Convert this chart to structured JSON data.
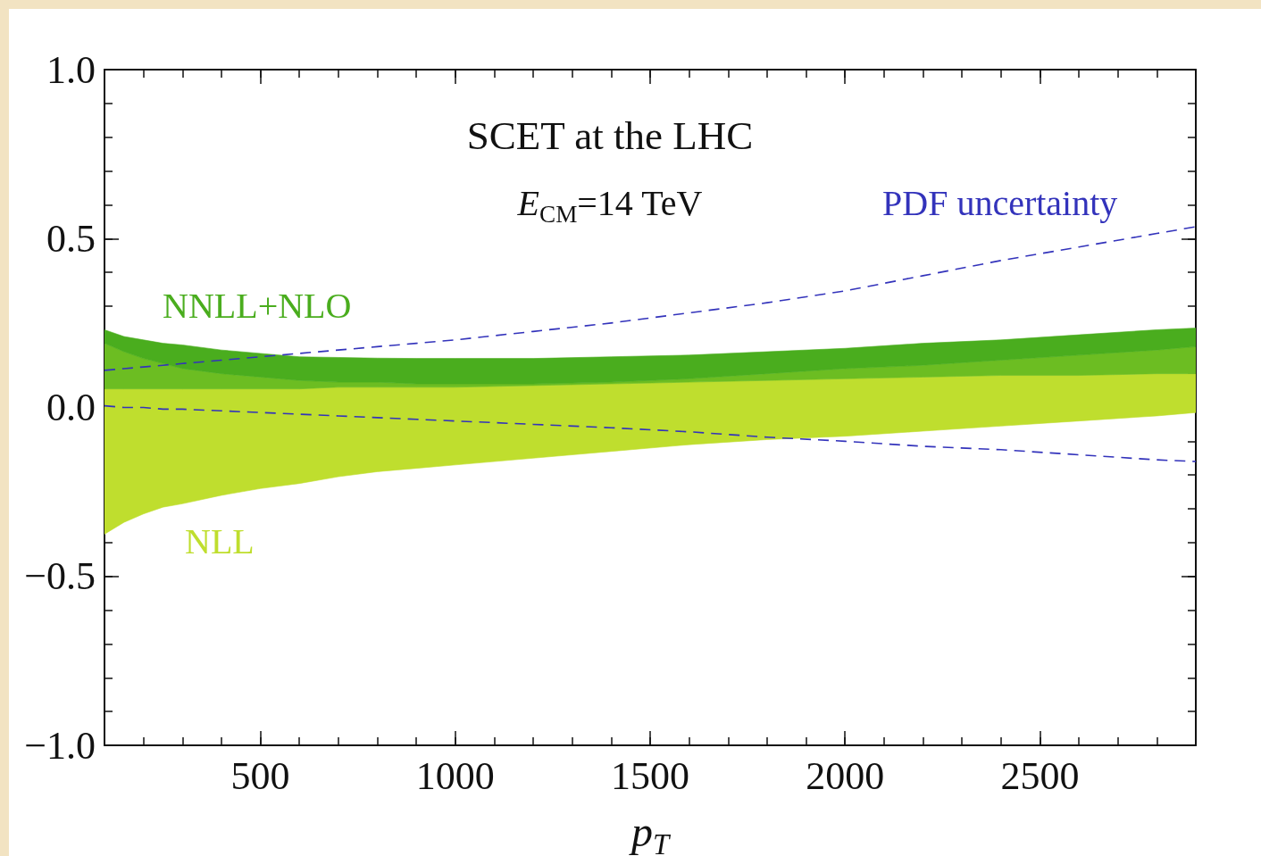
{
  "chart_data": {
    "type": "area",
    "title": "SCET at the LHC",
    "subtitle": "E$_{CM}$=14 TeV",
    "xlabel": "p$_{T}$",
    "x": [
      100,
      150,
      200,
      250,
      300,
      400,
      500,
      600,
      700,
      800,
      900,
      1000,
      1200,
      1400,
      1600,
      1800,
      2000,
      2200,
      2400,
      2600,
      2800,
      2900
    ],
    "series": [
      {
        "name": "NLL",
        "color": "#bfde2e",
        "values": [
          null,
          null,
          null,
          null,
          null,
          null,
          null,
          null,
          null,
          null,
          null,
          null,
          null,
          null,
          null,
          null,
          null,
          null,
          null,
          null,
          null,
          null
        ],
        "lower": [
          -0.375,
          -0.34,
          -0.315,
          -0.295,
          -0.285,
          -0.26,
          -0.24,
          -0.225,
          -0.205,
          -0.19,
          -0.18,
          -0.17,
          -0.15,
          -0.13,
          -0.11,
          -0.095,
          -0.085,
          -0.07,
          -0.055,
          -0.04,
          -0.025,
          -0.015
        ],
        "upper": [
          0.055,
          0.055,
          0.055,
          0.055,
          0.055,
          0.055,
          0.055,
          0.055,
          0.06,
          0.06,
          0.06,
          0.06,
          0.065,
          0.07,
          0.075,
          0.08,
          0.085,
          0.09,
          0.095,
          0.095,
          0.1,
          0.1
        ]
      },
      {
        "color": "#6cbd22",
        "values": [
          null,
          null,
          null,
          null,
          null,
          null,
          null,
          null,
          null,
          null,
          null,
          null,
          null,
          null,
          null,
          null,
          null,
          null,
          null,
          null,
          null,
          null
        ],
        "lower": [
          0.055,
          0.055,
          0.055,
          0.055,
          0.055,
          0.055,
          0.055,
          0.055,
          0.06,
          0.06,
          0.06,
          0.06,
          0.065,
          0.07,
          0.075,
          0.08,
          0.085,
          0.09,
          0.095,
          0.095,
          0.1,
          0.1
        ],
        "upper": [
          0.19,
          0.165,
          0.145,
          0.13,
          0.115,
          0.1,
          0.09,
          0.08,
          0.075,
          0.075,
          0.07,
          0.07,
          0.07,
          0.075,
          0.085,
          0.1,
          0.115,
          0.125,
          0.14,
          0.155,
          0.17,
          0.18
        ]
      },
      {
        "name": "NNLL+NLO",
        "color": "#4aad1e",
        "values": [
          null,
          null,
          null,
          null,
          null,
          null,
          null,
          null,
          null,
          null,
          null,
          null,
          null,
          null,
          null,
          null,
          null,
          null,
          null,
          null,
          null,
          null
        ],
        "lower": [
          0.19,
          0.165,
          0.145,
          0.13,
          0.115,
          0.1,
          0.09,
          0.08,
          0.075,
          0.075,
          0.07,
          0.07,
          0.07,
          0.075,
          0.085,
          0.1,
          0.115,
          0.125,
          0.14,
          0.155,
          0.17,
          0.18
        ],
        "upper": [
          0.23,
          0.21,
          0.2,
          0.19,
          0.185,
          0.17,
          0.16,
          0.15,
          0.148,
          0.146,
          0.145,
          0.145,
          0.145,
          0.15,
          0.155,
          0.165,
          0.175,
          0.19,
          0.2,
          0.215,
          0.23,
          0.235
        ]
      },
      {
        "name": "PDF uncertainty",
        "type": "line",
        "color": "#3333bb",
        "values": [
          0.11,
          0.115,
          0.12,
          0.125,
          0.13,
          0.14,
          0.15,
          0.16,
          0.17,
          0.18,
          0.19,
          0.2,
          0.225,
          0.25,
          0.28,
          0.31,
          0.345,
          0.39,
          0.435,
          0.475,
          0.515,
          0.535
        ]
      },
      {
        "type": "line",
        "color": "#3333bb",
        "values": [
          0.005,
          0,
          0,
          -0.005,
          -0.005,
          -0.01,
          -0.015,
          -0.02,
          -0.025,
          -0.03,
          -0.035,
          -0.04,
          -0.05,
          -0.06,
          -0.072,
          -0.088,
          -0.1,
          -0.115,
          -0.125,
          -0.14,
          -0.155,
          -0.16
        ]
      }
    ],
    "xlim": [
      100,
      2900
    ],
    "xticks": [
      {
        "value": 200,
        "label": null
      },
      {
        "value": 300,
        "label": null
      },
      {
        "value": 400,
        "label": null
      },
      500,
      {
        "value": 600,
        "label": null
      },
      {
        "value": 700,
        "label": null
      },
      {
        "value": 800,
        "label": null
      },
      {
        "value": 900,
        "label": null
      },
      1000,
      {
        "value": 1100,
        "label": null
      },
      {
        "value": 1200,
        "label": null
      },
      {
        "value": 1300,
        "label": null
      },
      {
        "value": 1400,
        "label": null
      },
      1500,
      {
        "value": 1600,
        "label": null
      },
      {
        "value": 1700,
        "label": null
      },
      {
        "value": 1800,
        "label": null
      },
      {
        "value": 1900,
        "label": null
      },
      2000,
      {
        "value": 2100,
        "label": null
      },
      {
        "value": 2200,
        "label": null
      },
      {
        "value": 2300,
        "label": null
      },
      {
        "value": 2400,
        "label": null
      },
      2500,
      {
        "value": 2600,
        "label": null
      },
      {
        "value": 2700,
        "label": null
      },
      {
        "value": 2800,
        "label": null
      }
    ],
    "ylim": [
      -1,
      1
    ],
    "yticks": [
      {
        "value": -1,
        "label": "−1.0"
      },
      {
        "value": -0.9,
        "label": null
      },
      {
        "value": -0.8,
        "label": null
      },
      {
        "value": -0.7,
        "label": null
      },
      {
        "value": -0.6,
        "label": null
      },
      {
        "value": -0.5,
        "label": "−0.5"
      },
      {
        "value": -0.4,
        "label": null
      },
      {
        "value": -0.3,
        "label": null
      },
      {
        "value": -0.2,
        "label": null
      },
      {
        "value": -0.1,
        "label": null
      },
      {
        "value": 0,
        "label": "0.0"
      },
      {
        "value": 0.1,
        "label": null
      },
      {
        "value": 0.2,
        "label": null
      },
      {
        "value": 0.3,
        "label": null
      },
      {
        "value": 0.4,
        "label": null
      },
      {
        "value": 0.5,
        "label": "0.5"
      },
      {
        "value": 0.6,
        "label": null
      },
      {
        "value": 0.7,
        "label": null
      },
      {
        "value": 0.8,
        "label": null
      },
      {
        "value": 0.9,
        "label": null
      },
      {
        "value": 1,
        "label": "1.0"
      }
    ],
    "line_style": "dashed",
    "marker": "none"
  }
}
